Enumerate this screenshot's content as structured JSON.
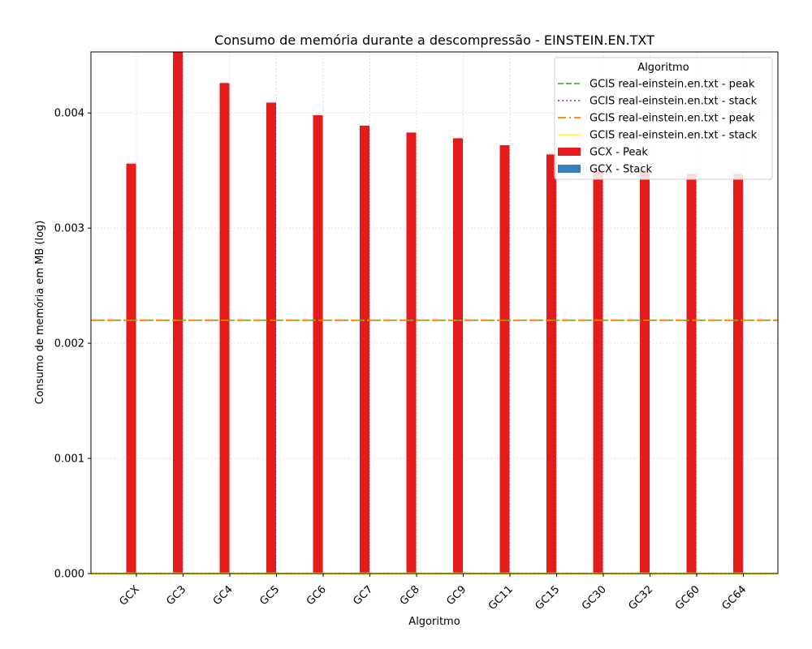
{
  "chart_data": {
    "type": "bar",
    "title": "Consumo de memória durante a descompressão -  EINSTEIN.EN.TXT",
    "xlabel": "Algoritmo",
    "ylabel": "Consumo de memória em MB (log)",
    "ylim": [
      0,
      0.00453
    ],
    "yticks": [
      0.0,
      0.001,
      0.002,
      0.003,
      0.004
    ],
    "ytick_labels": [
      "0.000",
      "0.001",
      "0.002",
      "0.003",
      "0.004"
    ],
    "grid": true,
    "categories": [
      "GCX",
      "GC3",
      "GC4",
      "GC5",
      "GC6",
      "GC7",
      "GC8",
      "GC9",
      "GC11",
      "GC15",
      "GC30",
      "GC32",
      "GC60",
      "GC64"
    ],
    "series": [
      {
        "name": "GCX - Peak",
        "color": "#e41a1c",
        "values": [
          0.00356,
          0.00453,
          0.00426,
          0.00409,
          0.00398,
          0.00389,
          0.00383,
          0.00378,
          0.00372,
          0.00364,
          0.00351,
          0.0035,
          0.00347,
          0.00347
        ]
      },
      {
        "name": "GCX - Stack",
        "color": "#377eb8",
        "values": [
          0,
          0,
          0,
          0,
          0,
          0,
          0,
          0,
          0,
          0,
          0,
          0,
          0,
          0
        ]
      }
    ],
    "reference_lines": [
      {
        "name": "GCIS real-einstein.en.txt - peak",
        "value": 0.0022,
        "color": "#4daf4a",
        "style": "dashed"
      },
      {
        "name": "GCIS real-einstein.en.txt - stack",
        "value": 0.0,
        "color": "#984ea3",
        "style": "dotted"
      },
      {
        "name": "GCIS real-einstein.en.txt - peak",
        "value": 0.0022,
        "color": "#ff7f00",
        "style": "dashdot"
      },
      {
        "name": "GCIS real-einstein.en.txt - stack",
        "value": 0.0,
        "color": "#ffff33",
        "style": "solid"
      }
    ],
    "legend": {
      "title": "Algoritmo",
      "placement": "top-right",
      "entries": [
        {
          "label": "GCIS real-einstein.en.txt - peak",
          "kind": "line",
          "color": "#4daf4a",
          "style": "dashed"
        },
        {
          "label": "GCIS real-einstein.en.txt - stack",
          "kind": "line",
          "color": "#984ea3",
          "style": "dotted"
        },
        {
          "label": "GCIS real-einstein.en.txt - peak",
          "kind": "line",
          "color": "#ff7f00",
          "style": "dashdot"
        },
        {
          "label": "GCIS real-einstein.en.txt - stack",
          "kind": "line",
          "color": "#ffff33",
          "style": "solid"
        },
        {
          "label": "GCX - Peak",
          "kind": "patch",
          "color": "#e41a1c"
        },
        {
          "label": "GCX - Stack",
          "kind": "patch",
          "color": "#377eb8"
        }
      ]
    }
  }
}
